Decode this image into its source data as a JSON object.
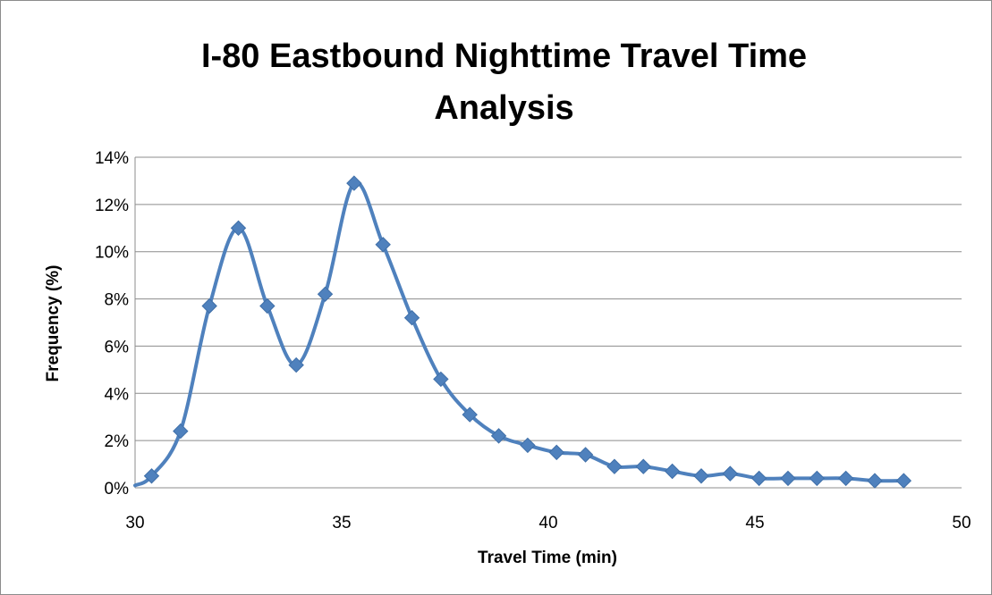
{
  "chart_data": {
    "type": "line",
    "title_line1": "I-80 Eastbound Nighttime Travel Time",
    "title_line2": "Analysis",
    "xlabel": "Travel Time (min)",
    "ylabel": "Frequency (%)",
    "xlim": [
      30,
      50
    ],
    "ylim": [
      0,
      14
    ],
    "x_ticks": [
      "30",
      "35",
      "40",
      "45",
      "50"
    ],
    "y_ticks": [
      "0%",
      "2%",
      "4%",
      "6%",
      "8%",
      "10%",
      "12%",
      "14%"
    ],
    "grid": "horizontal",
    "smooth": true,
    "marker": "diamond",
    "line_color": "#4f81bd",
    "curve_start": {
      "x": 30.0,
      "y": 0.1
    },
    "series": [
      {
        "x": [
          30.4,
          31.1,
          31.8,
          32.5,
          33.2,
          33.9,
          34.6,
          35.3,
          36.0,
          36.7,
          37.4,
          38.1,
          38.8,
          39.5,
          40.2,
          40.9,
          41.6,
          42.3,
          43.0,
          43.7,
          44.4,
          45.1,
          45.8,
          46.5,
          47.2,
          47.9,
          48.6
        ],
        "values": [
          0.5,
          2.4,
          7.7,
          11.0,
          7.7,
          5.2,
          8.2,
          12.9,
          10.3,
          7.2,
          4.6,
          3.1,
          2.2,
          1.8,
          1.5,
          1.4,
          0.9,
          0.9,
          0.7,
          0.5,
          0.6,
          0.4,
          0.4,
          0.4,
          0.4,
          0.3,
          0.3
        ]
      }
    ]
  }
}
